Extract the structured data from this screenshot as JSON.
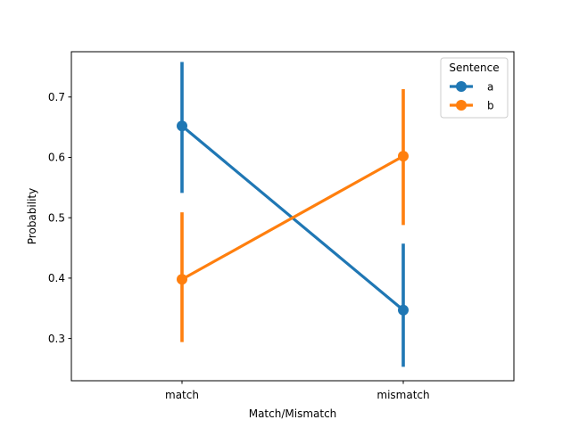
{
  "chart_data": {
    "type": "line",
    "categories": [
      "match",
      "mismatch"
    ],
    "xlabel": "Match/Mismatch",
    "ylabel": "Probability",
    "ylim": [
      0.23,
      0.775
    ],
    "yticks": [
      0.3,
      0.4,
      0.5,
      0.6,
      0.7
    ],
    "ytick_labels": [
      "0.3",
      "0.4",
      "0.5",
      "0.6",
      "0.7"
    ],
    "grid": false,
    "legend": {
      "title": "Sentence",
      "position": "top-right"
    },
    "series": [
      {
        "name": "a",
        "color": "#1f77b4",
        "values": [
          0.652,
          0.347
        ],
        "ci_low": [
          0.541,
          0.253
        ],
        "ci_high": [
          0.758,
          0.457
        ]
      },
      {
        "name": "b",
        "color": "#ff7f0e",
        "values": [
          0.398,
          0.602
        ],
        "ci_low": [
          0.294,
          0.488
        ],
        "ci_high": [
          0.509,
          0.713
        ]
      }
    ]
  }
}
